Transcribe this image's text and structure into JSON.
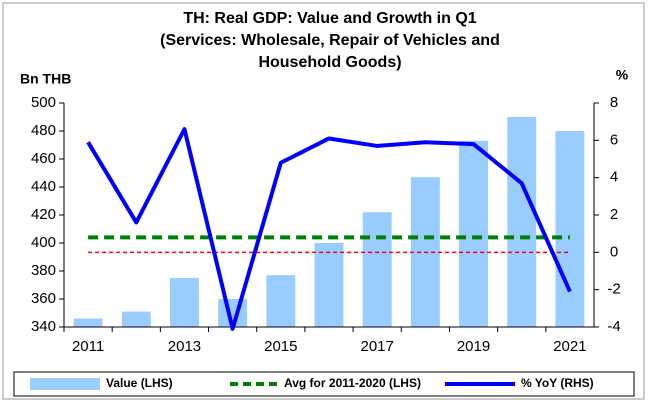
{
  "chart_data": {
    "type": "bar-line",
    "title": [
      "TH: Real GDP: Value and Growth in Q1",
      "(Services: Wholesale, Repair of Vehicles and",
      "Household Goods)"
    ],
    "ylabel": "Bn THB",
    "y2label": "%",
    "categories": [
      "2011",
      null,
      "2013",
      null,
      "2015",
      null,
      "2017",
      null,
      "2019",
      null,
      "2021"
    ],
    "ylim": [
      340,
      500
    ],
    "yticks": [
      340,
      360,
      380,
      400,
      420,
      440,
      460,
      480,
      500
    ],
    "y2lim": [
      -4,
      8
    ],
    "y2ticks": [
      -4,
      -2,
      0,
      2,
      4,
      6,
      8
    ],
    "zero_line_color": "#ff0000",
    "series": [
      {
        "name": "Value (LHS)",
        "type": "bar",
        "color": "#99ccff",
        "values": [
          346,
          351,
          375,
          360,
          377,
          400,
          422,
          447,
          473,
          490,
          480
        ]
      },
      {
        "name": "Avg for 2011-2020 (LHS)",
        "type": "hline",
        "color": "#008000",
        "value": 404
      },
      {
        "name": "% YoY (RHS)",
        "type": "line",
        "axis": "y2",
        "color": "#0000ff",
        "values": [
          5.9,
          1.6,
          6.6,
          -4.1,
          4.8,
          6.1,
          5.7,
          5.9,
          5.8,
          3.7,
          -2.1
        ]
      }
    ]
  }
}
